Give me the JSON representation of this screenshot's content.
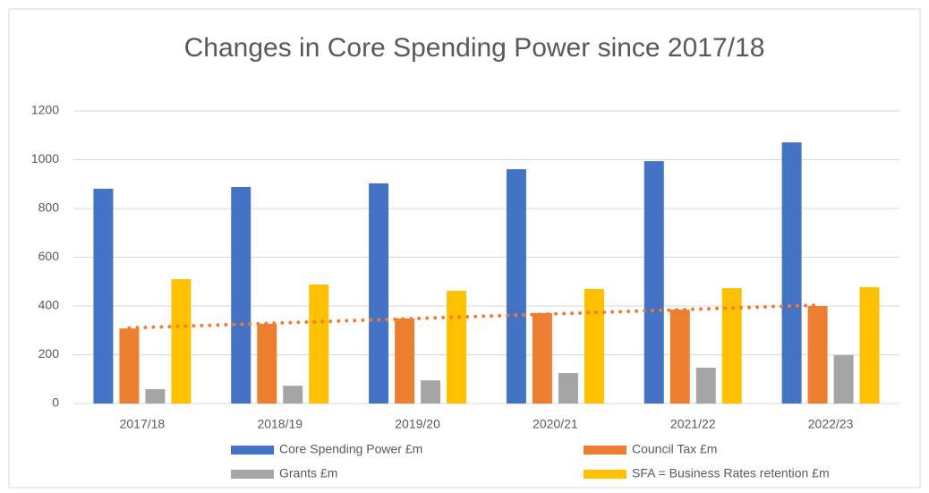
{
  "chart_data": {
    "type": "bar",
    "title": "Changes in Core Spending Power since 2017/18",
    "categories": [
      "2017/18",
      "2018/19",
      "2019/20",
      "2020/21",
      "2021/22",
      "2022/23"
    ],
    "series": [
      {
        "name": "Core Spending Power £m",
        "color": "#4472c4",
        "values": [
          881,
          888,
          903,
          961,
          994,
          1071
        ]
      },
      {
        "name": "Council Tax £m",
        "color": "#ed7d31",
        "values": [
          308,
          327,
          349,
          371,
          385,
          400
        ]
      },
      {
        "name": "Grants £m",
        "color": "#a5a5a5",
        "values": [
          59,
          73,
          95,
          125,
          147,
          198
        ]
      },
      {
        "name": "SFA = Business Rates retention £m",
        "color": "#ffc000",
        "values": [
          510,
          488,
          462,
          470,
          473,
          477
        ]
      }
    ],
    "ylim": [
      0,
      1200
    ],
    "yticks": [
      0,
      200,
      400,
      600,
      800,
      1000,
      1200
    ],
    "grid": true,
    "legend": "bottom",
    "trendline": {
      "series": 1,
      "type": "linear",
      "color": "#ed7d31"
    }
  }
}
